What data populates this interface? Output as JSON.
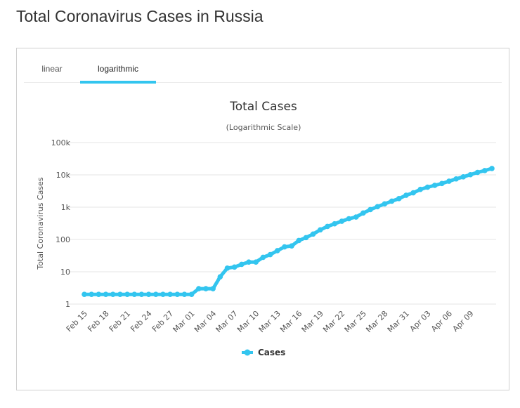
{
  "page": {
    "title": "Total Coronavirus Cases in Russia"
  },
  "tabs": [
    {
      "label": "linear"
    },
    {
      "label": "logarithmic"
    }
  ],
  "colors": {
    "series": "#33c5ef",
    "grid": "#e6e6e6",
    "tab_underline": "#33c5ef"
  },
  "chart_data": {
    "type": "line",
    "title": "Total Cases",
    "subtitle": "(Logarithmic Scale)",
    "ylabel": "Total Coronavirus Cases",
    "xlabel": "",
    "yscale": "log",
    "ylim": [
      1,
      100000
    ],
    "yticks": [
      {
        "value": 1,
        "label": "1"
      },
      {
        "value": 10,
        "label": "10"
      },
      {
        "value": 100,
        "label": "100"
      },
      {
        "value": 1000,
        "label": "1k"
      },
      {
        "value": 10000,
        "label": "10k"
      },
      {
        "value": 100000,
        "label": "100k"
      }
    ],
    "xticks": [
      "Feb 15",
      "Feb 18",
      "Feb 21",
      "Feb 24",
      "Feb 27",
      "Mar 01",
      "Mar 04",
      "Mar 07",
      "Mar 10",
      "Mar 13",
      "Mar 16",
      "Mar 19",
      "Mar 22",
      "Mar 25",
      "Mar 28",
      "Mar 31",
      "Apr 03",
      "Apr 06",
      "Apr 09"
    ],
    "grid": true,
    "legend": "bottom-center",
    "series": [
      {
        "name": "Cases",
        "x": [
          "Feb 15",
          "Feb 16",
          "Feb 17",
          "Feb 18",
          "Feb 19",
          "Feb 20",
          "Feb 21",
          "Feb 22",
          "Feb 23",
          "Feb 24",
          "Feb 25",
          "Feb 26",
          "Feb 27",
          "Feb 28",
          "Feb 29",
          "Mar 01",
          "Mar 02",
          "Mar 03",
          "Mar 04",
          "Mar 05",
          "Mar 06",
          "Mar 07",
          "Mar 08",
          "Mar 09",
          "Mar 10",
          "Mar 11",
          "Mar 12",
          "Mar 13",
          "Mar 14",
          "Mar 15",
          "Mar 16",
          "Mar 17",
          "Mar 18",
          "Mar 19",
          "Mar 20",
          "Mar 21",
          "Mar 22",
          "Mar 23",
          "Mar 24",
          "Mar 25",
          "Mar 26",
          "Mar 27",
          "Mar 28",
          "Mar 29",
          "Mar 30",
          "Mar 31",
          "Apr 01",
          "Apr 02",
          "Apr 03",
          "Apr 04",
          "Apr 05",
          "Apr 06",
          "Apr 07",
          "Apr 08",
          "Apr 09",
          "Apr 10",
          "Apr 11",
          "Apr 12"
        ],
        "values": [
          2,
          2,
          2,
          2,
          2,
          2,
          2,
          2,
          2,
          2,
          2,
          2,
          2,
          2,
          2,
          2,
          3,
          3,
          3,
          7,
          13,
          14,
          17,
          20,
          20,
          28,
          34,
          45,
          59,
          63,
          93,
          114,
          147,
          199,
          253,
          306,
          367,
          438,
          495,
          658,
          840,
          1036,
          1264,
          1534,
          1836,
          2337,
          2777,
          3548,
          4149,
          4731,
          5389,
          6343,
          7497,
          8672,
          10131,
          11917,
          13584,
          15770
        ]
      }
    ]
  }
}
